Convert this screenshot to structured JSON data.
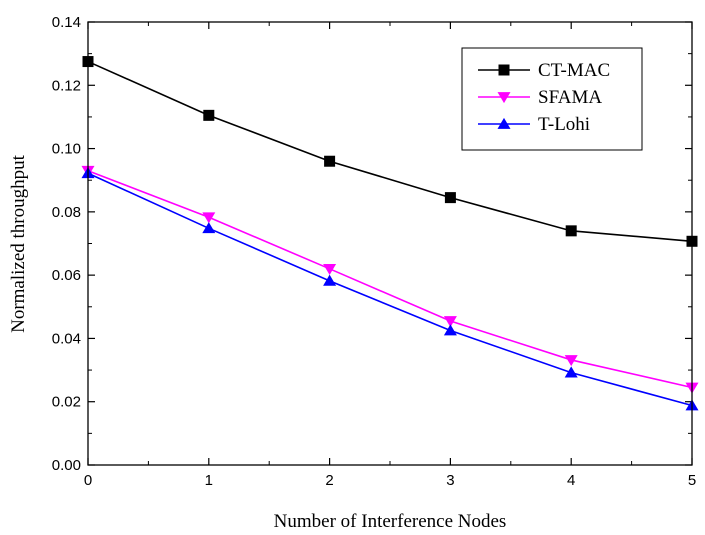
{
  "chart_data": {
    "type": "line",
    "title": "",
    "xlabel": "Number of Interference Nodes",
    "ylabel": "Normalized throughput",
    "xlim": [
      0,
      5
    ],
    "ylim": [
      0.0,
      0.14
    ],
    "x": [
      0,
      1,
      2,
      3,
      4,
      5
    ],
    "xticks": [
      "0",
      "1",
      "2",
      "3",
      "4",
      "5"
    ],
    "yticks": [
      "0.00",
      "0.02",
      "0.04",
      "0.06",
      "0.08",
      "0.10",
      "0.12",
      "0.14"
    ],
    "legend_position": "top-right",
    "series": [
      {
        "name": "CT-MAC",
        "color": "#000000",
        "marker": "square",
        "values": [
          0.1275,
          0.1105,
          0.096,
          0.0845,
          0.074,
          0.0707
        ]
      },
      {
        "name": "SFAMA",
        "color": "#ff00ff",
        "marker": "triangle-down",
        "values": [
          0.093,
          0.0783,
          0.062,
          0.0455,
          0.0332,
          0.0245
        ]
      },
      {
        "name": "T-Lohi",
        "color": "#0000ff",
        "marker": "triangle-up",
        "values": [
          0.0922,
          0.0748,
          0.0582,
          0.0425,
          0.0292,
          0.0188
        ]
      }
    ]
  }
}
